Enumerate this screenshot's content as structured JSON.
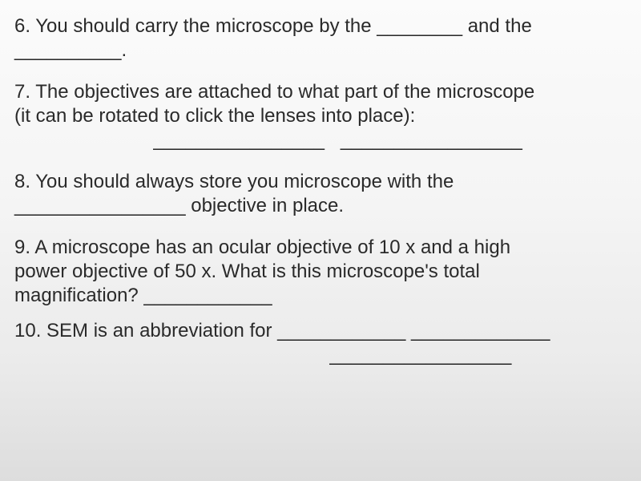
{
  "text_color": "#2a2a2a",
  "font_family": "Arial, Helvetica, sans-serif",
  "font_size_pt": 18,
  "background_gradient": [
    "#fbfbfb",
    "#f5f5f5",
    "#ebebeb",
    "#dddddd"
  ],
  "questions": {
    "q6": {
      "line1": "6.  You should carry the microscope by the ________ and the",
      "line2": "__________."
    },
    "q7": {
      "line1": "7.  The objectives are attached to what part of the microscope",
      "line2": "(it can be rotated to click the lenses into place):",
      "line3": "                          ________________   _________________"
    },
    "q8": {
      "line1": "8.  You should always store you microscope with the",
      "line2": " ________________ objective in place."
    },
    "q9": {
      "line1": "9.  A microscope has an ocular objective of 10 x and a high",
      "line2": "power objective of 50 x.  What is this microscope's total",
      "line3": "magnification?  ____________"
    },
    "q10": {
      "line1": "10. SEM is an abbreviation for ____________  _____________",
      "line2": "                                                           _________________"
    }
  }
}
